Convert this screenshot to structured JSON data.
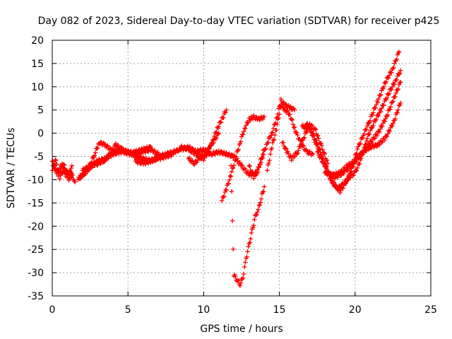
{
  "chart_data": {
    "type": "scatter",
    "title": "Day 082 of 2023, Sidereal Day-to-day VTEC variation (SDTVAR) for receiver p425",
    "xlabel": "GPS time / hours",
    "ylabel": "SDTVAR / TECUs",
    "xlim": [
      0,
      25
    ],
    "ylim": [
      -35,
      20
    ],
    "xticks": [
      0,
      5,
      10,
      15,
      20,
      25
    ],
    "yticks": [
      -35,
      -30,
      -25,
      -20,
      -15,
      -10,
      -5,
      0,
      5,
      10,
      15,
      20
    ],
    "grid": true,
    "marker": "+",
    "color": "#ff0000",
    "series": [
      {
        "x": [
          0.0,
          0.3,
          0.6,
          0.9,
          1.2,
          1.5
        ],
        "y": [
          -6.0,
          -8.5,
          -7.0,
          -9.0,
          -8.0,
          -10.5
        ]
      },
      {
        "x": [
          0.0,
          0.2,
          0.5,
          0.8,
          1.1,
          1.3
        ],
        "y": [
          -8.0,
          -5.5,
          -9.5,
          -7.5,
          -10.0,
          -7.0
        ]
      },
      {
        "x": [
          0.1,
          0.4,
          0.7,
          1.0,
          1.3
        ],
        "y": [
          -7.0,
          -9.0,
          -6.5,
          -8.5,
          -9.5
        ]
      },
      {
        "x": [
          1.7,
          2.0,
          2.4,
          2.8,
          3.1,
          3.5,
          4.0,
          4.5,
          5.0,
          5.5,
          6.0,
          6.5,
          7.0
        ],
        "y": [
          -10.0,
          -9.0,
          -7.5,
          -4.5,
          -2.0,
          -2.5,
          -4.0,
          -3.5,
          -4.0,
          -4.5,
          -4.0,
          -3.5,
          -4.5
        ]
      },
      {
        "x": [
          1.8,
          2.2,
          2.6,
          3.0,
          3.4,
          3.8,
          4.2,
          4.6,
          5.0,
          5.5,
          6.0,
          6.5
        ],
        "y": [
          -9.5,
          -8.5,
          -7.0,
          -6.5,
          -6.0,
          -4.5,
          -2.5,
          -3.5,
          -4.5,
          -4.0,
          -3.5,
          -3.0
        ]
      },
      {
        "x": [
          2.0,
          2.5,
          3.0,
          3.5,
          4.0,
          4.5,
          5.0,
          5.5,
          6.0,
          6.5,
          7.0,
          7.5,
          8.0
        ],
        "y": [
          -8.0,
          -7.0,
          -6.0,
          -5.5,
          -4.5,
          -4.0,
          -4.0,
          -5.0,
          -5.5,
          -6.0,
          -5.5,
          -5.0,
          -4.5
        ]
      },
      {
        "x": [
          5.5,
          6.0,
          6.5,
          7.0,
          7.5,
          8.0
        ],
        "y": [
          -6.0,
          -6.5,
          -6.0,
          -5.0,
          -4.5,
          -4.0
        ]
      },
      {
        "x": [
          8.0,
          8.5,
          9.0,
          9.5,
          10.0,
          10.5,
          11.0,
          11.5,
          12.0,
          12.5,
          13.0,
          13.5,
          14.0
        ],
        "y": [
          -4.0,
          -3.5,
          -3.0,
          -4.0,
          -3.5,
          -4.5,
          -4.0,
          -4.5,
          -5.0,
          -7.0,
          -9.0,
          -8.5,
          -3.5
        ]
      },
      {
        "x": [
          8.5,
          9.0,
          9.5,
          10.0,
          10.3,
          10.6,
          10.9,
          11.2,
          11.5
        ],
        "y": [
          -3.0,
          -3.5,
          -4.5,
          -5.5,
          -4.0,
          -1.5,
          1.0,
          3.0,
          5.0
        ]
      },
      {
        "x": [
          9.0,
          9.4,
          9.8,
          10.2,
          10.6,
          11.0
        ],
        "y": [
          -5.5,
          -6.5,
          -5.0,
          -4.0,
          -2.0,
          0.0
        ]
      },
      {
        "x": [
          11.2,
          11.5,
          11.8,
          12.1,
          12.4,
          12.7,
          13.0,
          13.3,
          13.6,
          14.0
        ],
        "y": [
          -14.5,
          -12.0,
          -9.0,
          -5.5,
          -2.0,
          1.0,
          3.0,
          3.5,
          3.0,
          3.5
        ]
      },
      {
        "x": [
          11.8,
          12.0,
          12.2,
          12.4,
          12.6,
          12.8,
          13.0,
          13.2,
          13.4,
          13.6,
          13.8,
          14.0
        ],
        "y": [
          -7.0,
          -30.5,
          -31.5,
          -32.5,
          -31.0,
          -27.0,
          -24.0,
          -21.0,
          -18.0,
          -16.5,
          -14.0,
          -11.5
        ]
      },
      {
        "x": [
          13.0,
          13.3,
          13.6,
          13.9,
          14.2,
          14.5,
          14.8,
          15.1,
          15.4,
          15.7,
          16.0
        ],
        "y": [
          -7.0,
          -9.5,
          -8.0,
          -5.0,
          -2.0,
          0.0,
          3.0,
          7.0,
          6.0,
          5.5,
          5.0
        ]
      },
      {
        "x": [
          14.2,
          14.5,
          14.8,
          15.1,
          15.4,
          15.7,
          16.0,
          16.4,
          16.8,
          17.2
        ],
        "y": [
          -8.0,
          -3.0,
          1.0,
          6.0,
          5.0,
          4.0,
          1.0,
          -2.0,
          -4.0,
          -4.5
        ]
      },
      {
        "x": [
          15.2,
          15.5,
          15.8,
          16.2,
          16.6,
          17.0,
          17.4,
          17.8,
          18.2
        ],
        "y": [
          -2.0,
          -4.0,
          -5.5,
          -4.0,
          -1.0,
          2.0,
          0.5,
          -3.0,
          -6.5
        ]
      },
      {
        "x": [
          16.5,
          17.0,
          17.4,
          17.8,
          18.2,
          18.6,
          19.0,
          19.4,
          19.8,
          20.2,
          20.6,
          21.0,
          21.5,
          22.0,
          22.5,
          22.9
        ],
        "y": [
          1.5,
          1.0,
          -2.0,
          -5.0,
          -8.5,
          -9.5,
          -9.0,
          -8.0,
          -7.0,
          -3.0,
          0.0,
          3.0,
          7.0,
          11.0,
          14.0,
          17.5
        ]
      },
      {
        "x": [
          16.8,
          17.2,
          17.6,
          18.0,
          18.4,
          18.8,
          19.2,
          19.6,
          20.0,
          20.4,
          20.8,
          21.2,
          21.7,
          22.2,
          22.7,
          23.0
        ],
        "y": [
          2.0,
          0.0,
          -3.0,
          -6.5,
          -10.0,
          -12.0,
          -11.0,
          -9.5,
          -8.5,
          -5.5,
          -1.0,
          2.0,
          5.0,
          8.5,
          11.5,
          13.5
        ]
      },
      {
        "x": [
          17.5,
          18.0,
          18.5,
          19.0,
          19.5,
          20.0,
          20.5,
          21.0,
          21.5,
          22.0,
          22.5,
          23.0
        ],
        "y": [
          -4.0,
          -7.0,
          -10.5,
          -12.5,
          -10.0,
          -6.0,
          -4.0,
          -2.0,
          0.0,
          3.0,
          7.0,
          11.0
        ]
      },
      {
        "x": [
          18.0,
          18.5,
          19.0,
          19.5,
          20.0,
          20.5,
          21.0,
          21.5,
          22.0,
          22.5,
          23.0
        ],
        "y": [
          -8.5,
          -9.0,
          -8.5,
          -7.0,
          -6.0,
          -4.0,
          -3.0,
          -2.5,
          -1.0,
          2.0,
          6.5
        ]
      }
    ]
  }
}
